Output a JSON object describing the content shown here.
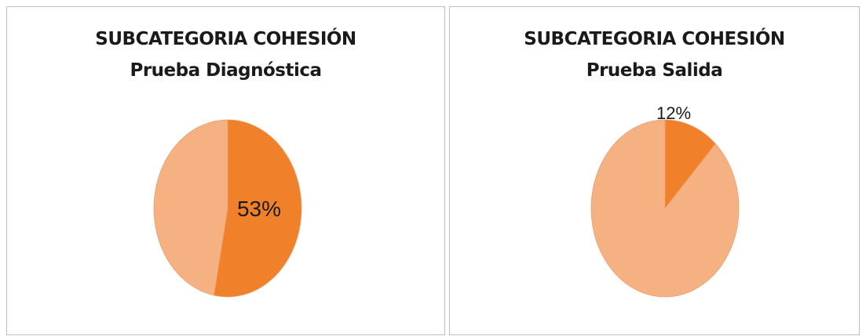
{
  "chart_data": [
    {
      "type": "pie",
      "title": "SUBCATEGORIA COHESIÓN",
      "subtitle": "Prueba Diagnóstica",
      "slices": [
        {
          "value": 53,
          "label": "53%",
          "color": "#f0812a"
        },
        {
          "value": 47,
          "label": "",
          "color": "#f6b183"
        }
      ]
    },
    {
      "type": "pie",
      "title": "SUBCATEGORIA COHESIÓN",
      "subtitle": "Prueba Salida",
      "slices": [
        {
          "value": 12,
          "label": "12%",
          "color": "#f0812a"
        },
        {
          "value": 88,
          "label": "",
          "color": "#f6b183"
        }
      ]
    }
  ]
}
